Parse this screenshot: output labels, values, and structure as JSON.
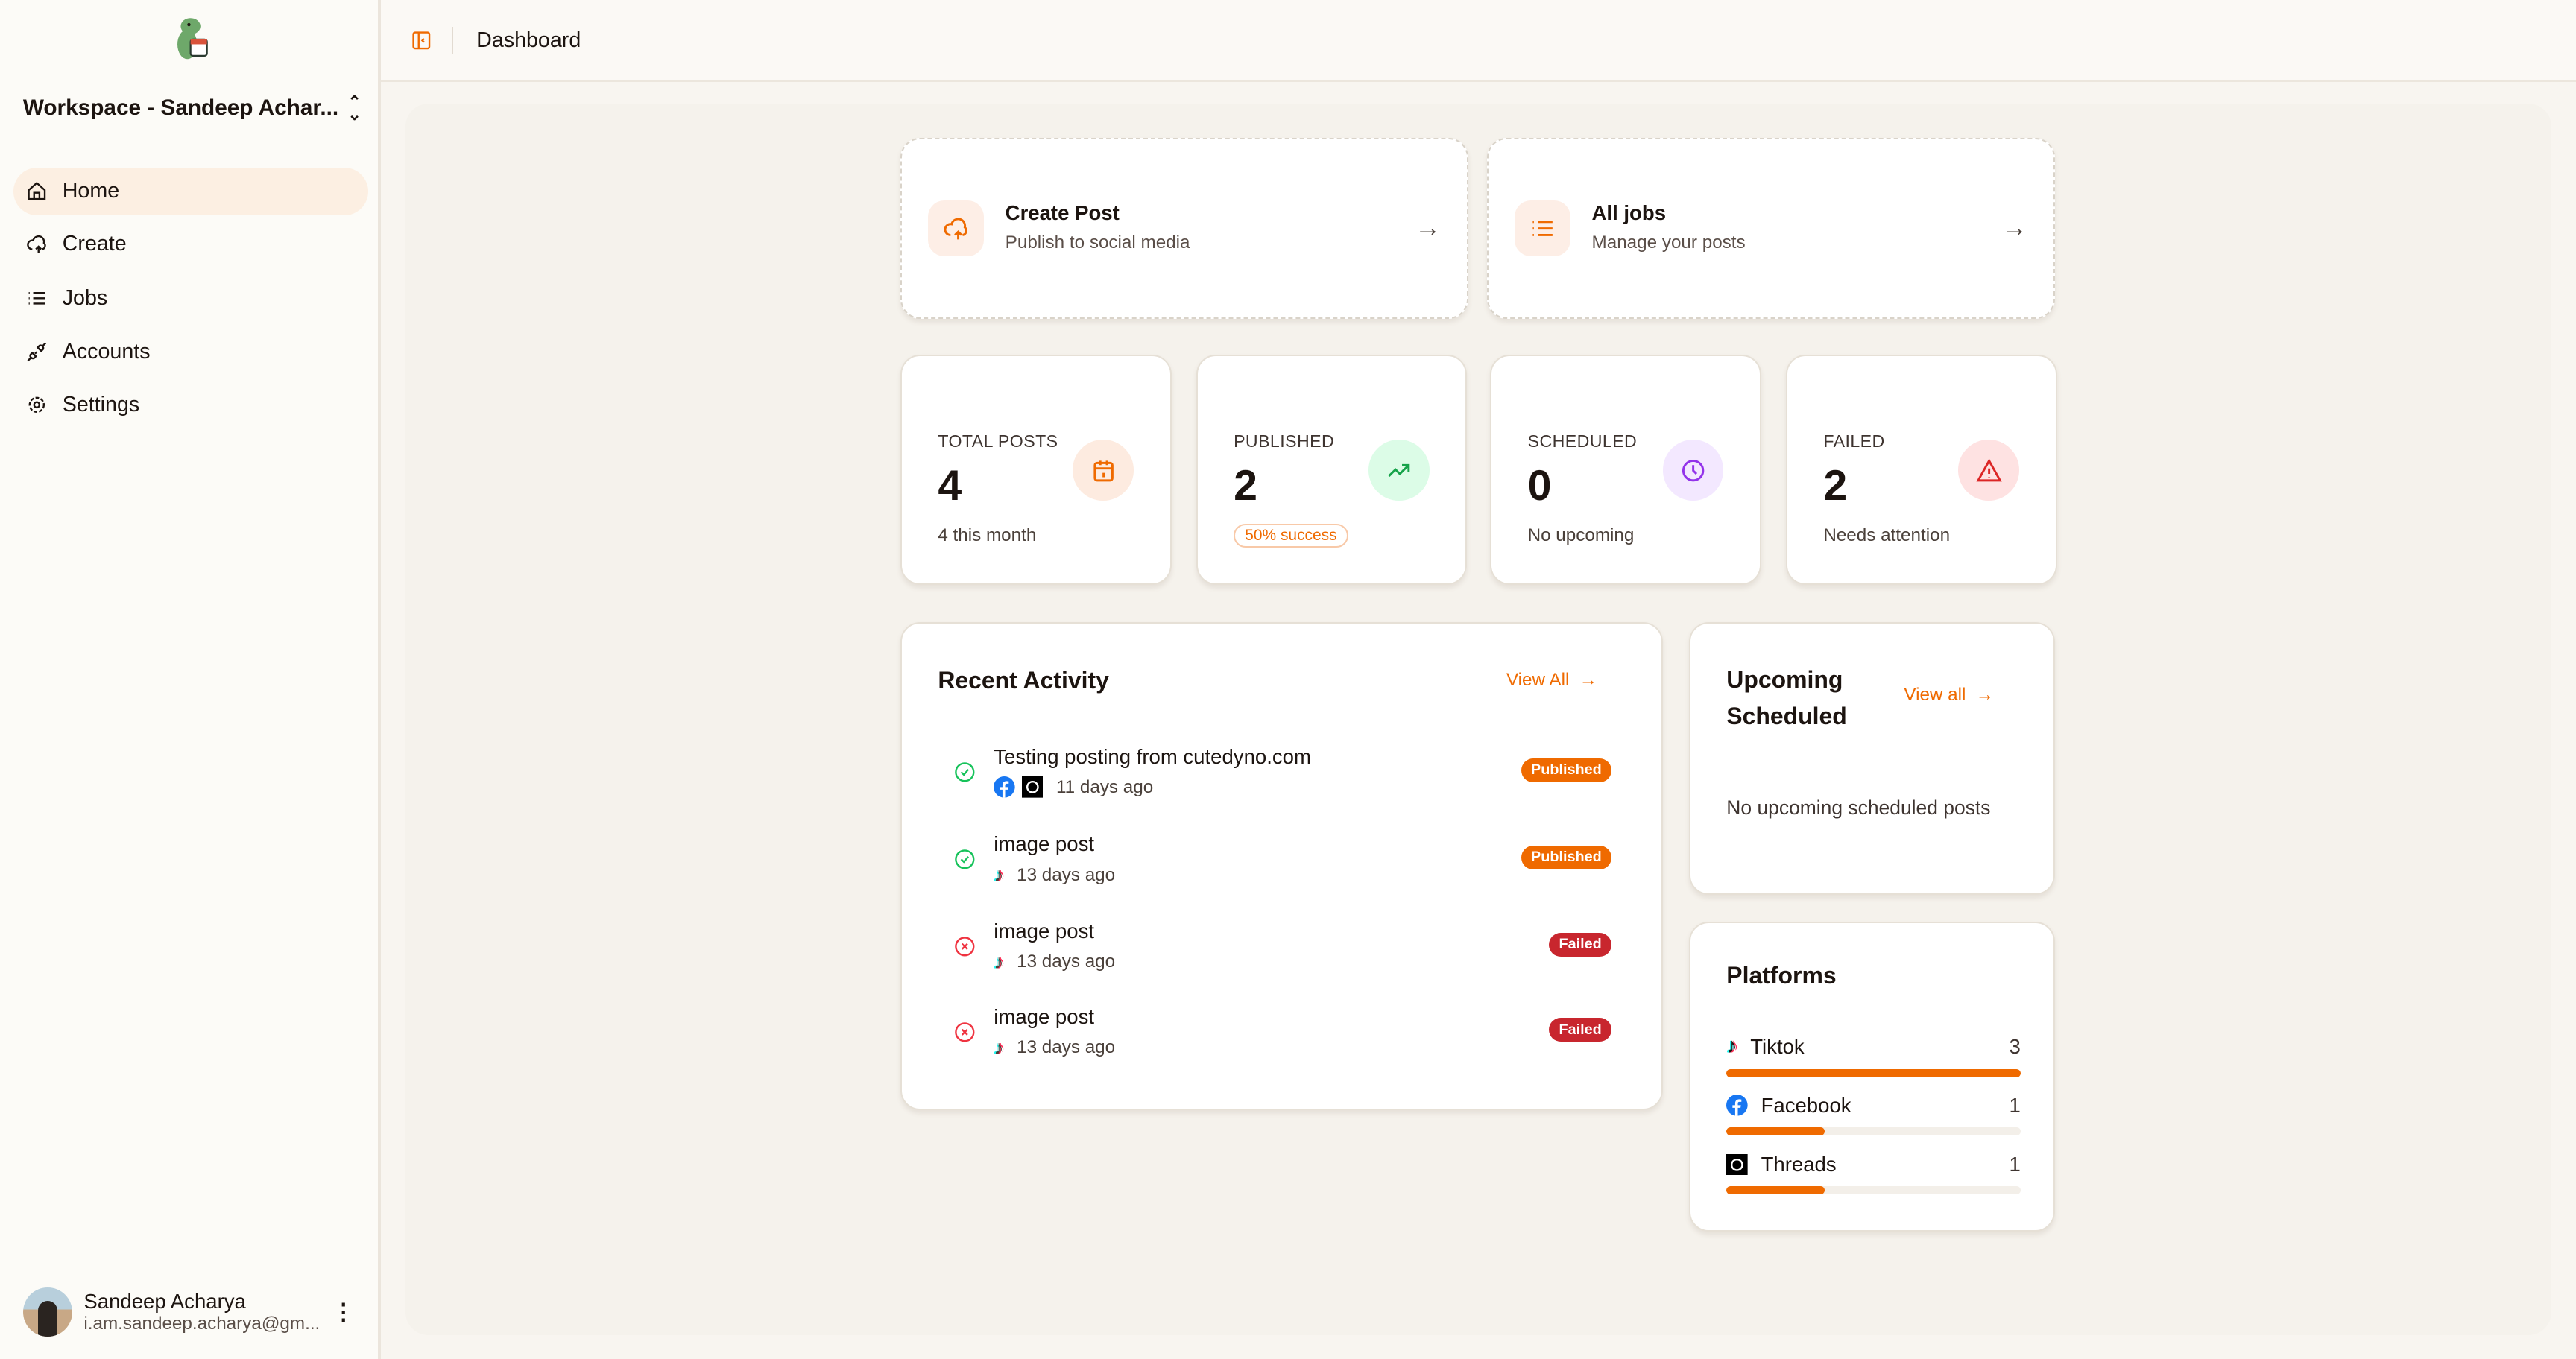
{
  "sidebar": {
    "workspace": "Workspace - Sandeep Achar...",
    "items": [
      {
        "label": "Home",
        "icon": "home-icon"
      },
      {
        "label": "Create",
        "icon": "cloud-upload-icon"
      },
      {
        "label": "Jobs",
        "icon": "list-icon"
      },
      {
        "label": "Accounts",
        "icon": "plug-icon"
      },
      {
        "label": "Settings",
        "icon": "gear-icon"
      }
    ],
    "user": {
      "name": "Sandeep Acharya",
      "email": "i.am.sandeep.acharya@gm..."
    }
  },
  "header": {
    "title": "Dashboard"
  },
  "actions": [
    {
      "title": "Create Post",
      "subtitle": "Publish to social media"
    },
    {
      "title": "All jobs",
      "subtitle": "Manage your posts"
    }
  ],
  "stats": [
    {
      "label": "TOTAL POSTS",
      "value": "4",
      "sub": "4 this month",
      "color": "#ef6a00",
      "bg": "#fdebe0"
    },
    {
      "label": "PUBLISHED",
      "value": "2",
      "sub": "50% success",
      "color": "#16a34a",
      "bg": "#dcfce7"
    },
    {
      "label": "SCHEDULED",
      "value": "0",
      "sub": "No upcoming",
      "color": "#9333ea",
      "bg": "#f3e8ff"
    },
    {
      "label": "FAILED",
      "value": "2",
      "sub": "Needs attention",
      "color": "#dc2626",
      "bg": "#fee2e2"
    }
  ],
  "recent": {
    "title": "Recent Activity",
    "view_all": "View All",
    "items": [
      {
        "title": "Testing posting from cutedyno.com",
        "time": "11 days ago",
        "status": "Published",
        "platforms": [
          "facebook",
          "threads"
        ]
      },
      {
        "title": "image post",
        "time": "13 days ago",
        "status": "Published",
        "platforms": [
          "tiktok"
        ]
      },
      {
        "title": "image post",
        "time": "13 days ago",
        "status": "Failed",
        "platforms": [
          "tiktok"
        ]
      },
      {
        "title": "image post",
        "time": "13 days ago",
        "status": "Failed",
        "platforms": [
          "tiktok"
        ]
      }
    ]
  },
  "upcoming": {
    "title_line1": "Upcoming",
    "title_line2": "Scheduled",
    "view_all": "View all",
    "empty": "No upcoming scheduled posts"
  },
  "platforms": {
    "title": "Platforms",
    "items": [
      {
        "name": "Tiktok",
        "count": "3",
        "fraction": 1
      },
      {
        "name": "Facebook",
        "count": "1",
        "fraction": 0.333
      },
      {
        "name": "Threads",
        "count": "1",
        "fraction": 0.333
      }
    ]
  },
  "colors": {
    "accent": "#ef6a00",
    "failed": "#c8262e",
    "success": "#16a34a"
  }
}
